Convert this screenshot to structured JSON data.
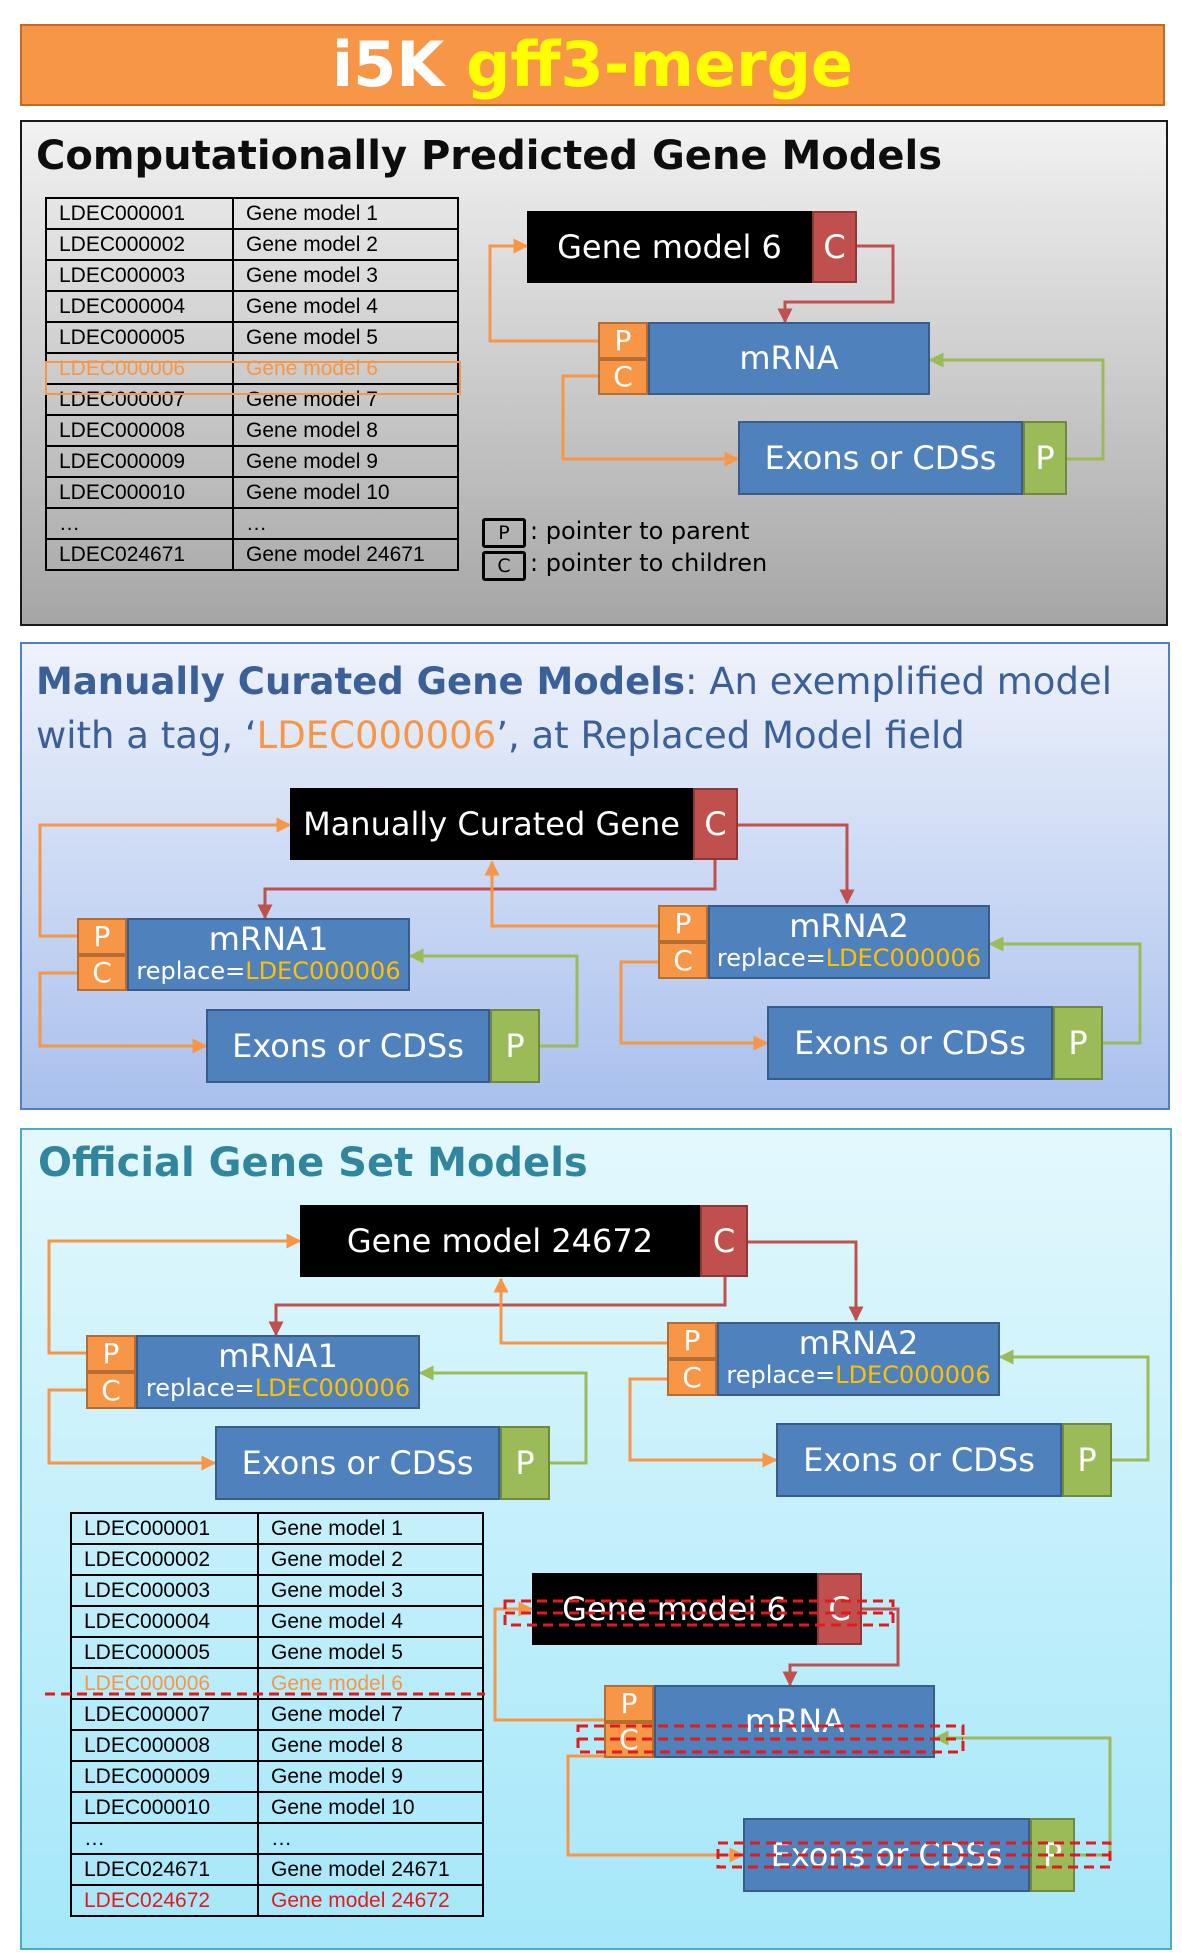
{
  "header": {
    "title_part1": "i5K",
    "title_part2": "gff3-merge"
  },
  "section1": {
    "title": "Computationally Predicted Gene Models",
    "table": [
      [
        "LDEC000001",
        "Gene model 1"
      ],
      [
        "LDEC000002",
        "Gene model 2"
      ],
      [
        "LDEC000003",
        "Gene model 3"
      ],
      [
        "LDEC000004",
        "Gene model 4"
      ],
      [
        "LDEC000005",
        "Gene model 5"
      ],
      [
        "LDEC000006",
        "Gene model 6"
      ],
      [
        "LDEC000007",
        "Gene model 7"
      ],
      [
        "LDEC000008",
        "Gene model 8"
      ],
      [
        "LDEC000009",
        "Gene model 9"
      ],
      [
        "LDEC000010",
        "Gene model 10"
      ],
      [
        "…",
        "…"
      ],
      [
        "LDEC024671",
        "Gene model 24671"
      ]
    ],
    "selected_row": 5,
    "diagram": {
      "gene": "Gene model 6",
      "mrna": "mRNA",
      "exons": "Exons or CDSs"
    },
    "legend": [
      {
        "key": "P",
        "text": ": pointer to parent"
      },
      {
        "key": "C",
        "text": ": pointer to children"
      }
    ]
  },
  "section2": {
    "title_bold": "Manually Curated Gene Models",
    "title_rest": ": An exemplified model",
    "title_line2_a": "with a tag,  ‘",
    "title_tag": "LDEC000006",
    "title_line2_b": "’, at Replaced Model field",
    "gene": "Manually Curated Gene",
    "mrna1": "mRNA1",
    "mrna2": "mRNA2",
    "replace_prefix": "replace=",
    "replace_tag": "LDEC000006",
    "exons": "Exons or CDSs"
  },
  "section3": {
    "title": "Official Gene Set Models",
    "gene": "Gene model 24672",
    "mrna1": "mRNA1",
    "mrna2": "mRNA2",
    "replace_prefix": "replace=",
    "replace_tag": "LDEC000006",
    "exons": "Exons or CDSs",
    "table": [
      [
        "LDEC000001",
        "Gene model 1"
      ],
      [
        "LDEC000002",
        "Gene model 2"
      ],
      [
        "LDEC000003",
        "Gene model 3"
      ],
      [
        "LDEC000004",
        "Gene model 4"
      ],
      [
        "LDEC000005",
        "Gene model 5"
      ],
      [
        "LDEC000006",
        "Gene model 6"
      ],
      [
        "LDEC000007",
        "Gene model 7"
      ],
      [
        "LDEC000008",
        "Gene model 8"
      ],
      [
        "LDEC000009",
        "Gene model 9"
      ],
      [
        "LDEC000010",
        "Gene model 10"
      ],
      [
        "…",
        "…"
      ],
      [
        "LDEC024671",
        "Gene model 24671"
      ],
      [
        "LDEC024672",
        "Gene model 24672"
      ]
    ],
    "removed_row": 5,
    "added_row": 12,
    "removed_diagram": {
      "gene": "Gene model 6",
      "mrna": "mRNA",
      "exons": "Exons or CDSs"
    }
  },
  "labels": {
    "parent": "P",
    "children": "C"
  },
  "colors": {
    "banner": "#f79646",
    "title_highlight": "#ffff00",
    "gene_box": "#000000",
    "feature_box": "#4f81bd",
    "child_pointer": "#c0504d",
    "parent_pointer_orange": "#f79646",
    "parent_pointer_green": "#9bbb59",
    "tag_orange": "#f79646",
    "tag_yellow": "#ffc000",
    "new_row": "#e31a1c",
    "strike": "#e31a1c"
  }
}
